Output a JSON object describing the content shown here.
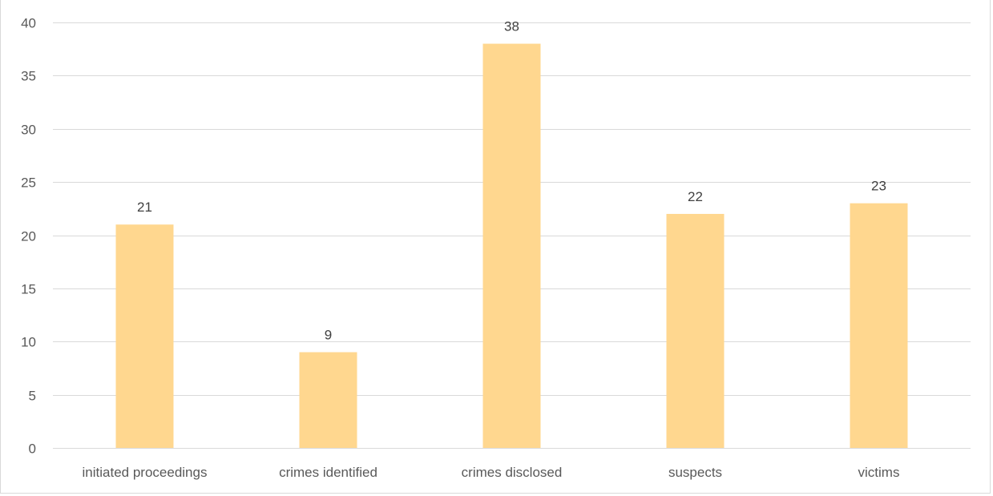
{
  "chart_data": {
    "type": "bar",
    "categories": [
      "initiated proceedings",
      "crimes identified",
      "crimes disclosed",
      "suspects",
      "victims"
    ],
    "values": [
      21,
      9,
      38,
      22,
      23
    ],
    "data_labels": [
      "21",
      "9",
      "38",
      "22",
      "23"
    ],
    "title": "",
    "xlabel": "",
    "ylabel": "",
    "ylim": [
      0,
      40
    ],
    "yticks": [
      0,
      5,
      10,
      15,
      20,
      25,
      30,
      35,
      40
    ],
    "ytick_labels": [
      "0",
      "5",
      "10",
      "15",
      "20",
      "25",
      "30",
      "35",
      "40"
    ],
    "grid": true,
    "legend": "none",
    "colors": {
      "bar": "#FFD78F",
      "grid": "#D9D9D9",
      "axis_text": "#595959",
      "label_text": "#404040"
    }
  }
}
